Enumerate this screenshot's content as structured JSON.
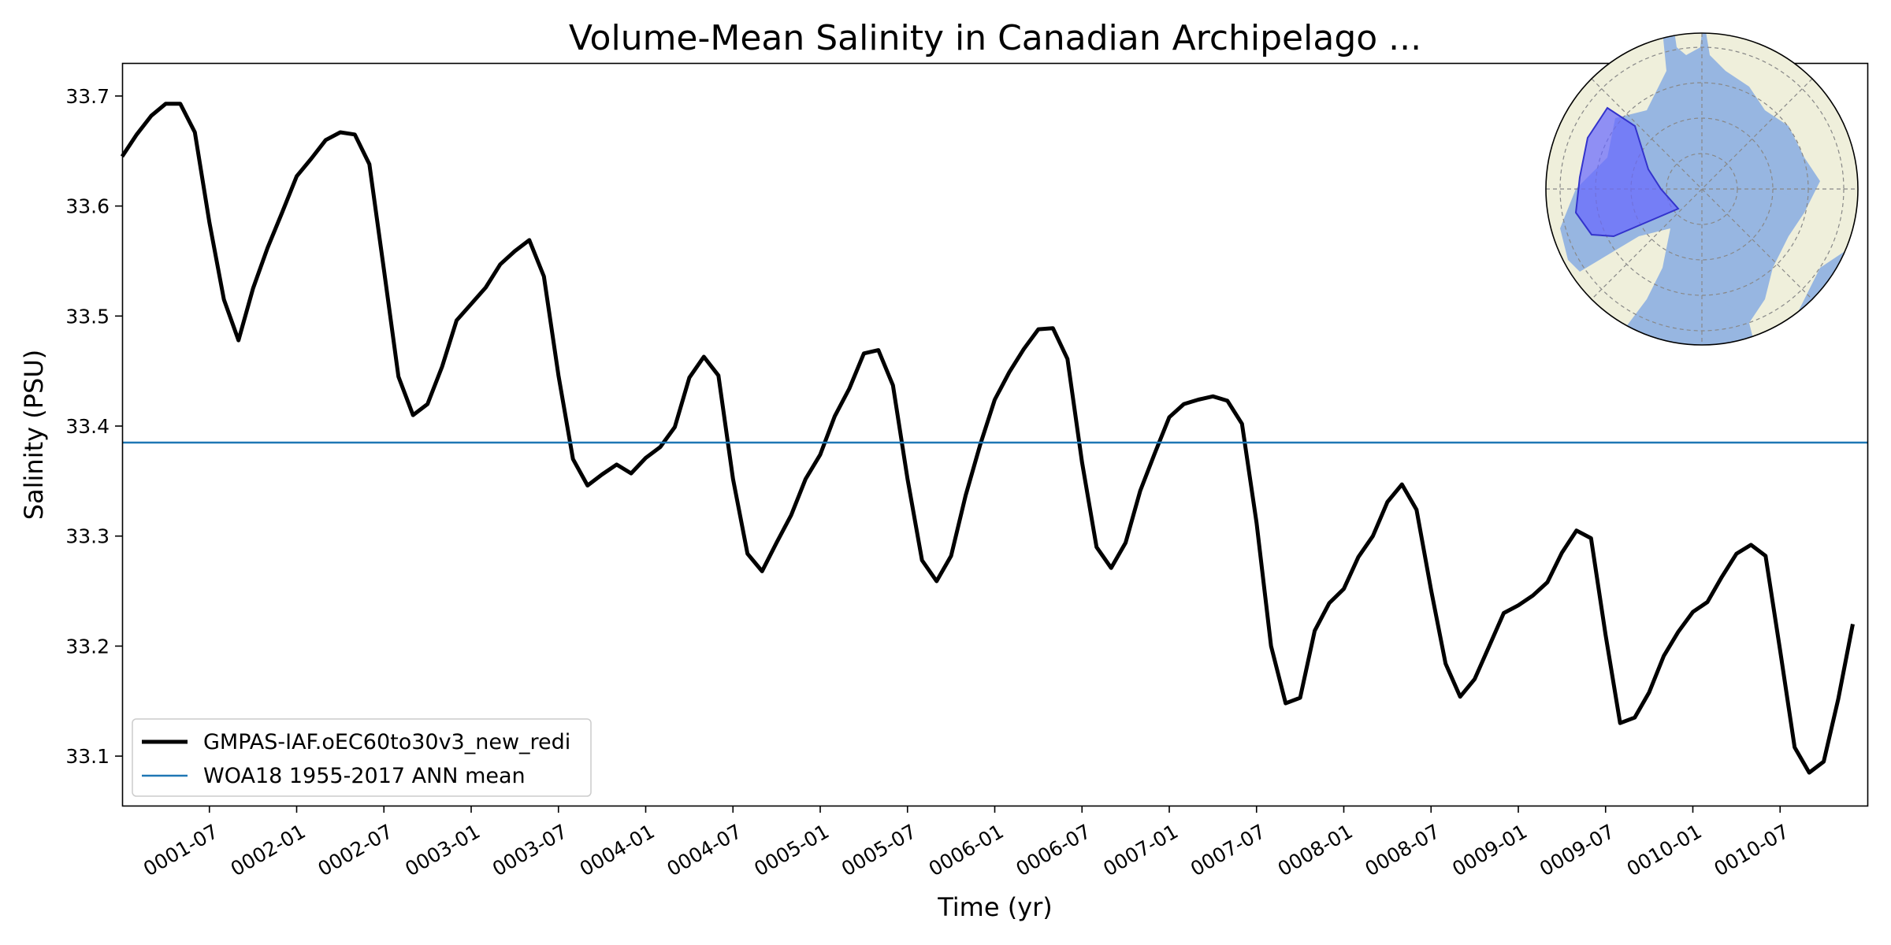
{
  "chart_data": {
    "type": "line",
    "title": "Volume-Mean Salinity in Canadian Archipelago ...",
    "xlabel": "Time (yr)",
    "ylabel": "Salinity (PSU)",
    "xlim": [
      "0001-01-01",
      "0010-12-31"
    ],
    "ylim": [
      33.055,
      33.73
    ],
    "yticks": [
      33.1,
      33.2,
      33.3,
      33.4,
      33.5,
      33.6,
      33.7
    ],
    "xticks": [
      "0001-07",
      "0002-01",
      "0002-07",
      "0003-01",
      "0003-07",
      "0004-01",
      "0004-07",
      "0005-01",
      "0005-07",
      "0006-01",
      "0006-07",
      "0007-01",
      "0007-07",
      "0008-01",
      "0008-07",
      "0009-01",
      "0009-07",
      "0010-01",
      "0010-07"
    ],
    "grid": false,
    "legend_position": "lower-left",
    "series": [
      {
        "name": "GMPAS-IAF.oEC60to30v3_new_redi",
        "color": "#000000",
        "x": [
          "0001-01",
          "0001-02",
          "0001-03",
          "0001-04",
          "0001-05",
          "0001-06",
          "0001-07",
          "0001-08",
          "0001-09",
          "0001-10",
          "0001-11",
          "0001-12",
          "0002-01",
          "0002-02",
          "0002-03",
          "0002-04",
          "0002-05",
          "0002-06",
          "0002-07",
          "0002-08",
          "0002-09",
          "0002-10",
          "0002-11",
          "0002-12",
          "0003-01",
          "0003-02",
          "0003-03",
          "0003-04",
          "0003-05",
          "0003-06",
          "0003-07",
          "0003-08",
          "0003-09",
          "0003-10",
          "0003-11",
          "0003-12",
          "0004-01",
          "0004-02",
          "0004-03",
          "0004-04",
          "0004-05",
          "0004-06",
          "0004-07",
          "0004-08",
          "0004-09",
          "0004-10",
          "0004-11",
          "0004-12",
          "0005-01",
          "0005-02",
          "0005-03",
          "0005-04",
          "0005-05",
          "0005-06",
          "0005-07",
          "0005-08",
          "0005-09",
          "0005-10",
          "0005-11",
          "0005-12",
          "0006-01",
          "0006-02",
          "0006-03",
          "0006-04",
          "0006-05",
          "0006-06",
          "0006-07",
          "0006-08",
          "0006-09",
          "0006-10",
          "0006-11",
          "0006-12",
          "0007-01",
          "0007-02",
          "0007-03",
          "0007-04",
          "0007-05",
          "0007-06",
          "0007-07",
          "0007-08",
          "0007-09",
          "0007-10",
          "0007-11",
          "0007-12",
          "0008-01",
          "0008-02",
          "0008-03",
          "0008-04",
          "0008-05",
          "0008-06",
          "0008-07",
          "0008-08",
          "0008-09",
          "0008-10",
          "0008-11",
          "0008-12",
          "0009-01",
          "0009-02",
          "0009-03",
          "0009-04",
          "0009-05",
          "0009-06",
          "0009-07",
          "0009-08",
          "0009-09",
          "0009-10",
          "0009-11",
          "0009-12",
          "0010-01",
          "0010-02",
          "0010-03",
          "0010-04",
          "0010-05",
          "0010-06",
          "0010-07",
          "0010-08",
          "0010-09",
          "0010-10",
          "0010-11",
          "0010-12"
        ],
        "values": [
          33.645,
          33.665,
          33.682,
          33.693,
          33.693,
          33.667,
          33.585,
          33.515,
          33.478,
          33.525,
          33.562,
          33.594,
          33.627,
          33.643,
          33.66,
          33.667,
          33.665,
          33.638,
          33.542,
          33.445,
          33.41,
          33.42,
          33.454,
          33.496,
          33.511,
          33.526,
          33.547,
          33.559,
          33.569,
          33.536,
          33.446,
          33.37,
          33.346,
          33.356,
          33.365,
          33.357,
          33.371,
          33.381,
          33.399,
          33.444,
          33.463,
          33.446,
          33.352,
          33.284,
          33.268,
          33.294,
          33.319,
          33.352,
          33.374,
          33.409,
          33.434,
          33.466,
          33.469,
          33.437,
          33.352,
          33.278,
          33.259,
          33.282,
          33.337,
          33.383,
          33.424,
          33.449,
          33.47,
          33.488,
          33.489,
          33.461,
          33.367,
          33.29,
          33.271,
          33.294,
          33.341,
          33.375,
          33.408,
          33.42,
          33.424,
          33.427,
          33.423,
          33.402,
          33.312,
          33.2,
          33.148,
          33.153,
          33.214,
          33.239,
          33.252,
          33.281,
          33.3,
          33.331,
          33.347,
          33.324,
          33.251,
          33.184,
          33.154,
          33.17,
          33.2,
          33.23,
          33.237,
          33.246,
          33.258,
          33.285,
          33.305,
          33.298,
          33.21,
          33.13,
          33.135,
          33.158,
          33.191,
          33.213,
          33.231,
          33.24,
          33.263,
          33.284,
          33.292,
          33.282,
          33.196,
          33.108,
          33.085,
          33.095,
          33.152,
          33.22
        ]
      },
      {
        "name": "WOA18 1955-2017 ANN mean",
        "color": "#1f77b4",
        "constant": 33.385
      }
    ],
    "inset_map": {
      "projection": "north-polar-stereographic",
      "region": "Canadian Archipelago",
      "ocean_color": "#97b6e1",
      "land_color": "#efefdb",
      "region_color": "#6666ff"
    }
  }
}
